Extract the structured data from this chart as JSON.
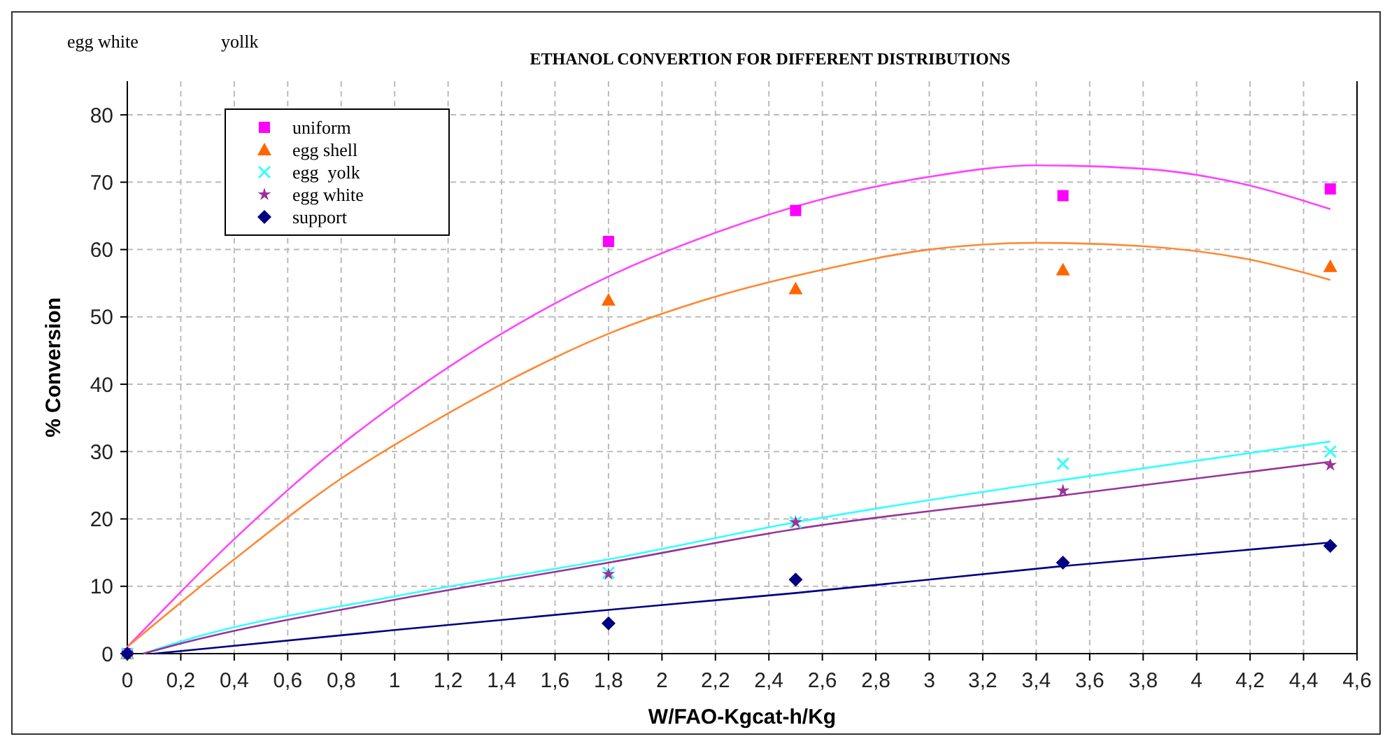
{
  "chart_data": {
    "type": "scatter",
    "title": "ETHANOL CONVERTION FOR DIFFERENT DISTRIBUTIONS",
    "xlabel": "W/FAO-Kgcat-h/Kg",
    "ylabel": "% Conversion",
    "annotations": [
      "egg white",
      "yollk"
    ],
    "xlim": [
      0,
      4.6
    ],
    "ylim": [
      0,
      85
    ],
    "xticks": [
      0,
      {
        "value": 0.2,
        "label": "0,2"
      },
      {
        "value": 0.4,
        "label": "0,4"
      },
      {
        "value": 0.6,
        "label": "0,6"
      },
      {
        "value": 0.8,
        "label": "0,8"
      },
      1,
      {
        "value": 1.2,
        "label": "1,2"
      },
      {
        "value": 1.4,
        "label": "1,4"
      },
      {
        "value": 1.6,
        "label": "1,6"
      },
      {
        "value": 1.8,
        "label": "1,8"
      },
      2,
      {
        "value": 2.2,
        "label": "2,2"
      },
      {
        "value": 2.4,
        "label": "2,4"
      },
      {
        "value": 2.6,
        "label": "2,6"
      },
      {
        "value": 2.8,
        "label": "2,8"
      },
      3,
      {
        "value": 3.2,
        "label": "3,2"
      },
      {
        "value": 3.4,
        "label": "3,4"
      },
      {
        "value": 3.6,
        "label": "3,6"
      },
      {
        "value": 3.8,
        "label": "3,8"
      },
      4,
      {
        "value": 4.2,
        "label": "4,2"
      },
      {
        "value": 4.4,
        "label": "4,4"
      },
      {
        "value": 4.6,
        "label": "4,6"
      }
    ],
    "yticks": [
      0,
      10,
      20,
      30,
      40,
      50,
      60,
      70,
      80
    ],
    "grid": true,
    "legend": "top left",
    "series": [
      {
        "type": "line",
        "color": "#ff44ff",
        "marker": "none",
        "x": [
          0,
          0.4,
          0.8,
          1,
          1.4,
          1.8,
          2.2,
          2.6,
          3,
          3.4,
          3.8,
          4.2,
          4.5
        ],
        "values": [
          1,
          17,
          31,
          37,
          47.5,
          56,
          62.5,
          67.5,
          70.8,
          72.5,
          72,
          69.5,
          66
        ]
      },
      {
        "type": "line",
        "color": "#ff8833",
        "marker": "none",
        "x": [
          0,
          0.4,
          0.8,
          1,
          1.4,
          1.8,
          2.2,
          2.6,
          3,
          3.4,
          3.8,
          4.2,
          4.5
        ],
        "values": [
          1,
          14,
          26,
          31,
          40,
          47.5,
          53,
          57,
          60,
          61,
          60.5,
          58.5,
          55.5
        ]
      },
      {
        "type": "line",
        "color": "#33ffff",
        "marker": "none",
        "x": [
          0.06,
          0.2,
          1,
          1.8,
          2.5,
          3.5,
          4.5
        ],
        "values": [
          0,
          1.8,
          8.5,
          14,
          19.5,
          25.8,
          31.5
        ]
      },
      {
        "type": "line",
        "color": "#993399",
        "marker": "none",
        "x": [
          0.06,
          0.2,
          1,
          1.8,
          2.5,
          3.5,
          4.5
        ],
        "values": [
          0,
          1.5,
          8,
          13.5,
          18.5,
          23.5,
          28.5
        ]
      },
      {
        "type": "line",
        "color": "#000080",
        "marker": "none",
        "x": [
          0.1,
          1,
          1.8,
          2.5,
          3.5,
          4.5
        ],
        "values": [
          0,
          3.5,
          6.5,
          9,
          13,
          16.5
        ]
      },
      {
        "name": "uniform",
        "color": "#ff00ff",
        "marker": "square",
        "x": [
          0,
          1.8,
          2.5,
          3.5,
          4.5
        ],
        "values": [
          0,
          61.2,
          65.8,
          68,
          69
        ]
      },
      {
        "name": "egg shell",
        "color": "#ff6600",
        "marker": "triangle",
        "x": [
          0,
          1.8,
          2.5,
          3.5,
          4.5
        ],
        "values": [
          0,
          52.5,
          54.2,
          57,
          57.5
        ]
      },
      {
        "name": "egg  yolk",
        "color": "#33ffff",
        "marker": "cross",
        "x": [
          0,
          1.8,
          2.5,
          3.5,
          4.5
        ],
        "values": [
          0,
          12,
          19.5,
          28.2,
          30
        ]
      },
      {
        "name": "egg white",
        "color": "#993399",
        "marker": "star",
        "x": [
          0,
          1.8,
          2.5,
          3.5,
          4.5
        ],
        "values": [
          0,
          11.8,
          19.5,
          24.2,
          28
        ]
      },
      {
        "name": "support",
        "color": "#000080",
        "marker": "diamond",
        "x": [
          0,
          1.8,
          2.5,
          3.5,
          4.5
        ],
        "values": [
          0,
          4.5,
          11,
          13.5,
          16
        ]
      }
    ]
  }
}
